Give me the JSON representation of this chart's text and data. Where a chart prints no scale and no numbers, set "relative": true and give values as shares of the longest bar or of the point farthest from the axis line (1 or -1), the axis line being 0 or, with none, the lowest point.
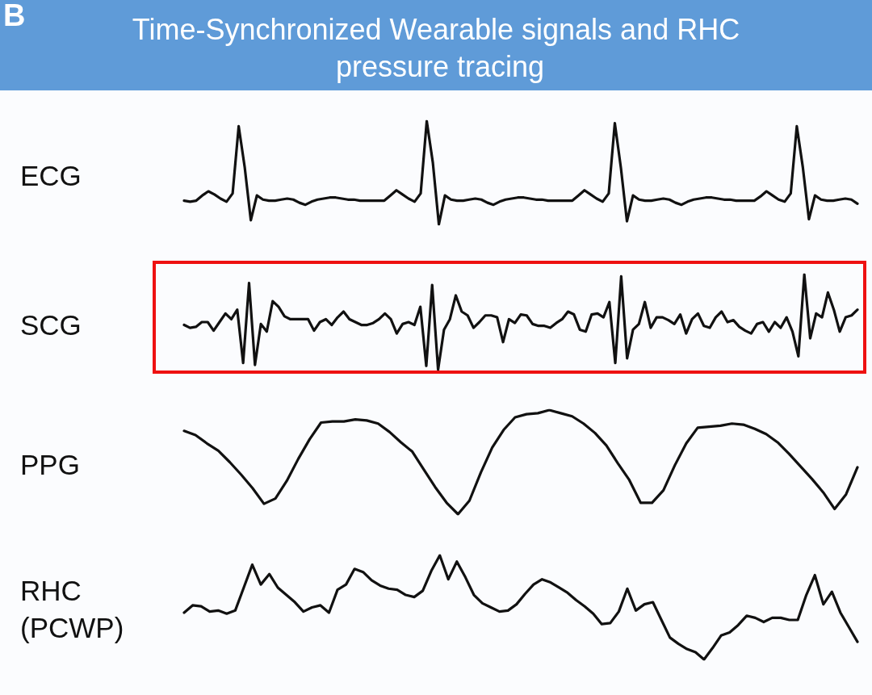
{
  "chart_data": [
    {
      "type": "line",
      "title": "Time-Synchronized Wearable signals and RHC pressure tracing",
      "annotations": [
        "B"
      ],
      "ylabel": "ECG",
      "relative": true,
      "marker": "none",
      "categories": [
        null,
        null,
        null,
        null,
        null,
        null,
        null,
        null,
        null,
        null,
        null,
        null,
        null,
        null,
        null,
        null,
        null,
        null,
        null,
        null,
        null,
        null,
        null,
        null,
        null,
        null,
        null,
        null,
        null,
        null,
        null,
        null,
        null,
        null,
        null,
        null,
        null,
        null,
        null,
        null,
        null,
        null,
        null,
        null,
        null,
        null,
        null,
        null,
        null,
        null,
        null,
        null,
        null,
        null,
        null,
        null,
        null,
        null,
        null,
        null,
        null,
        null,
        null,
        null,
        null,
        null,
        null,
        null,
        null,
        null,
        null,
        null,
        null,
        null,
        null,
        null,
        null,
        null,
        null,
        null,
        null,
        null,
        null,
        null,
        null,
        null,
        null,
        null,
        null,
        null,
        null,
        null,
        null,
        null,
        null,
        null,
        null,
        null,
        null,
        null,
        null,
        null,
        null,
        null,
        null,
        null,
        null,
        null,
        null,
        null,
        null,
        null
      ],
      "series": [
        {
          "color": "#111111",
          "values": [
            0.23,
            0.22,
            0.23,
            0.28,
            0.32,
            0.29,
            0.25,
            0.22,
            0.3,
            0.95,
            0.55,
            0.04,
            0.28,
            0.24,
            0.23,
            0.23,
            0.24,
            0.25,
            0.24,
            0.21,
            0.19,
            0.22,
            0.24,
            0.25,
            0.26,
            0.26,
            0.25,
            0.24,
            0.24,
            0.23,
            0.23,
            0.23,
            0.23,
            0.23,
            0.28,
            0.33,
            0.29,
            0.25,
            0.22,
            0.3,
            1.0,
            0.6,
            0.0,
            0.28,
            0.24,
            0.23,
            0.23,
            0.24,
            0.25,
            0.24,
            0.21,
            0.19,
            0.22,
            0.24,
            0.25,
            0.26,
            0.26,
            0.25,
            0.24,
            0.24,
            0.23,
            0.23,
            0.23,
            0.23,
            0.23,
            0.28,
            0.33,
            0.29,
            0.25,
            0.22,
            0.3,
            0.98,
            0.55,
            0.03,
            0.28,
            0.24,
            0.23,
            0.23,
            0.24,
            0.25,
            0.24,
            0.21,
            0.19,
            0.22,
            0.24,
            0.25,
            0.26,
            0.26,
            0.25,
            0.24,
            0.24,
            0.23,
            0.23,
            0.23,
            0.23,
            0.27,
            0.32,
            0.28,
            0.24,
            0.22,
            0.3,
            0.95,
            0.55,
            0.05,
            0.28,
            0.24,
            0.23,
            0.23,
            0.24,
            0.25,
            0.24,
            0.2
          ]
        }
      ]
    },
    {
      "type": "line",
      "ylabel": "SCG",
      "relative": true,
      "marker": "none",
      "categories": [
        null,
        null,
        null,
        null,
        null,
        null,
        null,
        null,
        null,
        null,
        null,
        null,
        null,
        null,
        null,
        null,
        null,
        null,
        null,
        null,
        null,
        null,
        null,
        null,
        null,
        null,
        null,
        null,
        null,
        null,
        null,
        null,
        null,
        null,
        null,
        null,
        null,
        null,
        null,
        null,
        null,
        null,
        null,
        null,
        null,
        null,
        null,
        null,
        null,
        null,
        null,
        null,
        null,
        null,
        null,
        null,
        null,
        null,
        null,
        null,
        null,
        null,
        null,
        null,
        null,
        null,
        null,
        null,
        null,
        null,
        null,
        null,
        null,
        null,
        null,
        null,
        null,
        null,
        null,
        null,
        null,
        null,
        null,
        null,
        null,
        null,
        null,
        null,
        null,
        null,
        null,
        null,
        null,
        null,
        null,
        null,
        null,
        null,
        null,
        null,
        null,
        null,
        null,
        null,
        null,
        null,
        null,
        null,
        null,
        null,
        null,
        null,
        null,
        null,
        null
      ],
      "series": [
        {
          "color": "#111111",
          "values": [
            0.47,
            0.44,
            0.45,
            0.5,
            0.5,
            0.41,
            0.5,
            0.59,
            0.53,
            0.63,
            0.07,
            0.91,
            0.05,
            0.48,
            0.4,
            0.72,
            0.66,
            0.56,
            0.53,
            0.53,
            0.53,
            0.53,
            0.41,
            0.5,
            0.53,
            0.47,
            0.55,
            0.61,
            0.53,
            0.5,
            0.47,
            0.47,
            0.49,
            0.53,
            0.59,
            0.53,
            0.38,
            0.48,
            0.5,
            0.47,
            0.66,
            0.04,
            0.89,
            0.0,
            0.42,
            0.53,
            0.78,
            0.61,
            0.57,
            0.44,
            0.5,
            0.57,
            0.57,
            0.55,
            0.29,
            0.53,
            0.49,
            0.58,
            0.57,
            0.48,
            0.46,
            0.46,
            0.44,
            0.49,
            0.53,
            0.61,
            0.58,
            0.42,
            0.4,
            0.58,
            0.59,
            0.55,
            0.71,
            0.07,
            0.98,
            0.12,
            0.42,
            0.48,
            0.71,
            0.44,
            0.55,
            0.55,
            0.52,
            0.48,
            0.58,
            0.38,
            0.53,
            0.59,
            0.46,
            0.44,
            0.55,
            0.61,
            0.5,
            0.52,
            0.45,
            0.41,
            0.38,
            0.48,
            0.5,
            0.4,
            0.5,
            0.44,
            0.55,
            0.4,
            0.14,
            1.0,
            0.33,
            0.59,
            0.55,
            0.81,
            0.63,
            0.4,
            0.55,
            0.57,
            0.63
          ]
        }
      ]
    },
    {
      "type": "line",
      "ylabel": "PPG",
      "relative": true,
      "marker": "none",
      "categories": [
        null,
        null,
        null,
        null,
        null,
        null,
        null,
        null,
        null,
        null,
        null,
        null,
        null,
        null,
        null,
        null,
        null,
        null,
        null,
        null,
        null,
        null,
        null,
        null,
        null,
        null,
        null,
        null,
        null,
        null,
        null,
        null,
        null,
        null,
        null,
        null,
        null,
        null,
        null,
        null,
        null,
        null,
        null,
        null,
        null,
        null,
        null,
        null,
        null,
        null,
        null,
        null,
        null,
        null,
        null,
        null,
        null,
        null,
        null,
        null
      ],
      "series": [
        {
          "color": "#111111",
          "values": [
            0.8,
            0.76,
            0.68,
            0.61,
            0.5,
            0.38,
            0.25,
            0.1,
            0.15,
            0.32,
            0.53,
            0.72,
            0.88,
            0.89,
            0.89,
            0.91,
            0.9,
            0.87,
            0.79,
            0.69,
            0.6,
            0.43,
            0.26,
            0.11,
            0.0,
            0.13,
            0.4,
            0.64,
            0.81,
            0.93,
            0.96,
            0.97,
            1.0,
            0.97,
            0.94,
            0.87,
            0.78,
            0.66,
            0.49,
            0.33,
            0.11,
            0.11,
            0.23,
            0.47,
            0.68,
            0.83,
            0.84,
            0.85,
            0.87,
            0.86,
            0.82,
            0.77,
            0.69,
            0.58,
            0.46,
            0.34,
            0.21,
            0.05,
            0.19,
            0.45
          ]
        }
      ]
    },
    {
      "type": "line",
      "ylabel": "RHC (PCWP)",
      "relative": true,
      "marker": "none",
      "categories": [
        null,
        null,
        null,
        null,
        null,
        null,
        null,
        null,
        null,
        null,
        null,
        null,
        null,
        null,
        null,
        null,
        null,
        null,
        null,
        null,
        null,
        null,
        null,
        null,
        null,
        null,
        null,
        null,
        null,
        null,
        null,
        null,
        null,
        null,
        null,
        null,
        null,
        null,
        null,
        null,
        null,
        null,
        null,
        null,
        null,
        null,
        null,
        null,
        null,
        null,
        null,
        null,
        null,
        null,
        null,
        null,
        null,
        null,
        null,
        null,
        null,
        null,
        null,
        null,
        null,
        null,
        null,
        null,
        null,
        null,
        null,
        null,
        null,
        null,
        null,
        null,
        null,
        null,
        null,
        null
      ],
      "series": [
        {
          "color": "#111111",
          "values": [
            0.45,
            0.52,
            0.51,
            0.46,
            0.47,
            0.44,
            0.47,
            0.69,
            0.91,
            0.72,
            0.82,
            0.69,
            0.62,
            0.55,
            0.46,
            0.5,
            0.52,
            0.45,
            0.67,
            0.72,
            0.87,
            0.84,
            0.76,
            0.71,
            0.68,
            0.67,
            0.62,
            0.6,
            0.66,
            0.85,
            1.0,
            0.77,
            0.94,
            0.79,
            0.62,
            0.54,
            0.5,
            0.46,
            0.47,
            0.53,
            0.63,
            0.72,
            0.77,
            0.74,
            0.69,
            0.64,
            0.57,
            0.51,
            0.44,
            0.34,
            0.35,
            0.46,
            0.68,
            0.47,
            0.53,
            0.55,
            0.38,
            0.21,
            0.15,
            0.1,
            0.07,
            0.0,
            0.11,
            0.23,
            0.26,
            0.33,
            0.42,
            0.4,
            0.36,
            0.4,
            0.4,
            0.38,
            0.38,
            0.62,
            0.81,
            0.53,
            0.65,
            0.45,
            0.31,
            0.17
          ]
        }
      ]
    }
  ]
}
